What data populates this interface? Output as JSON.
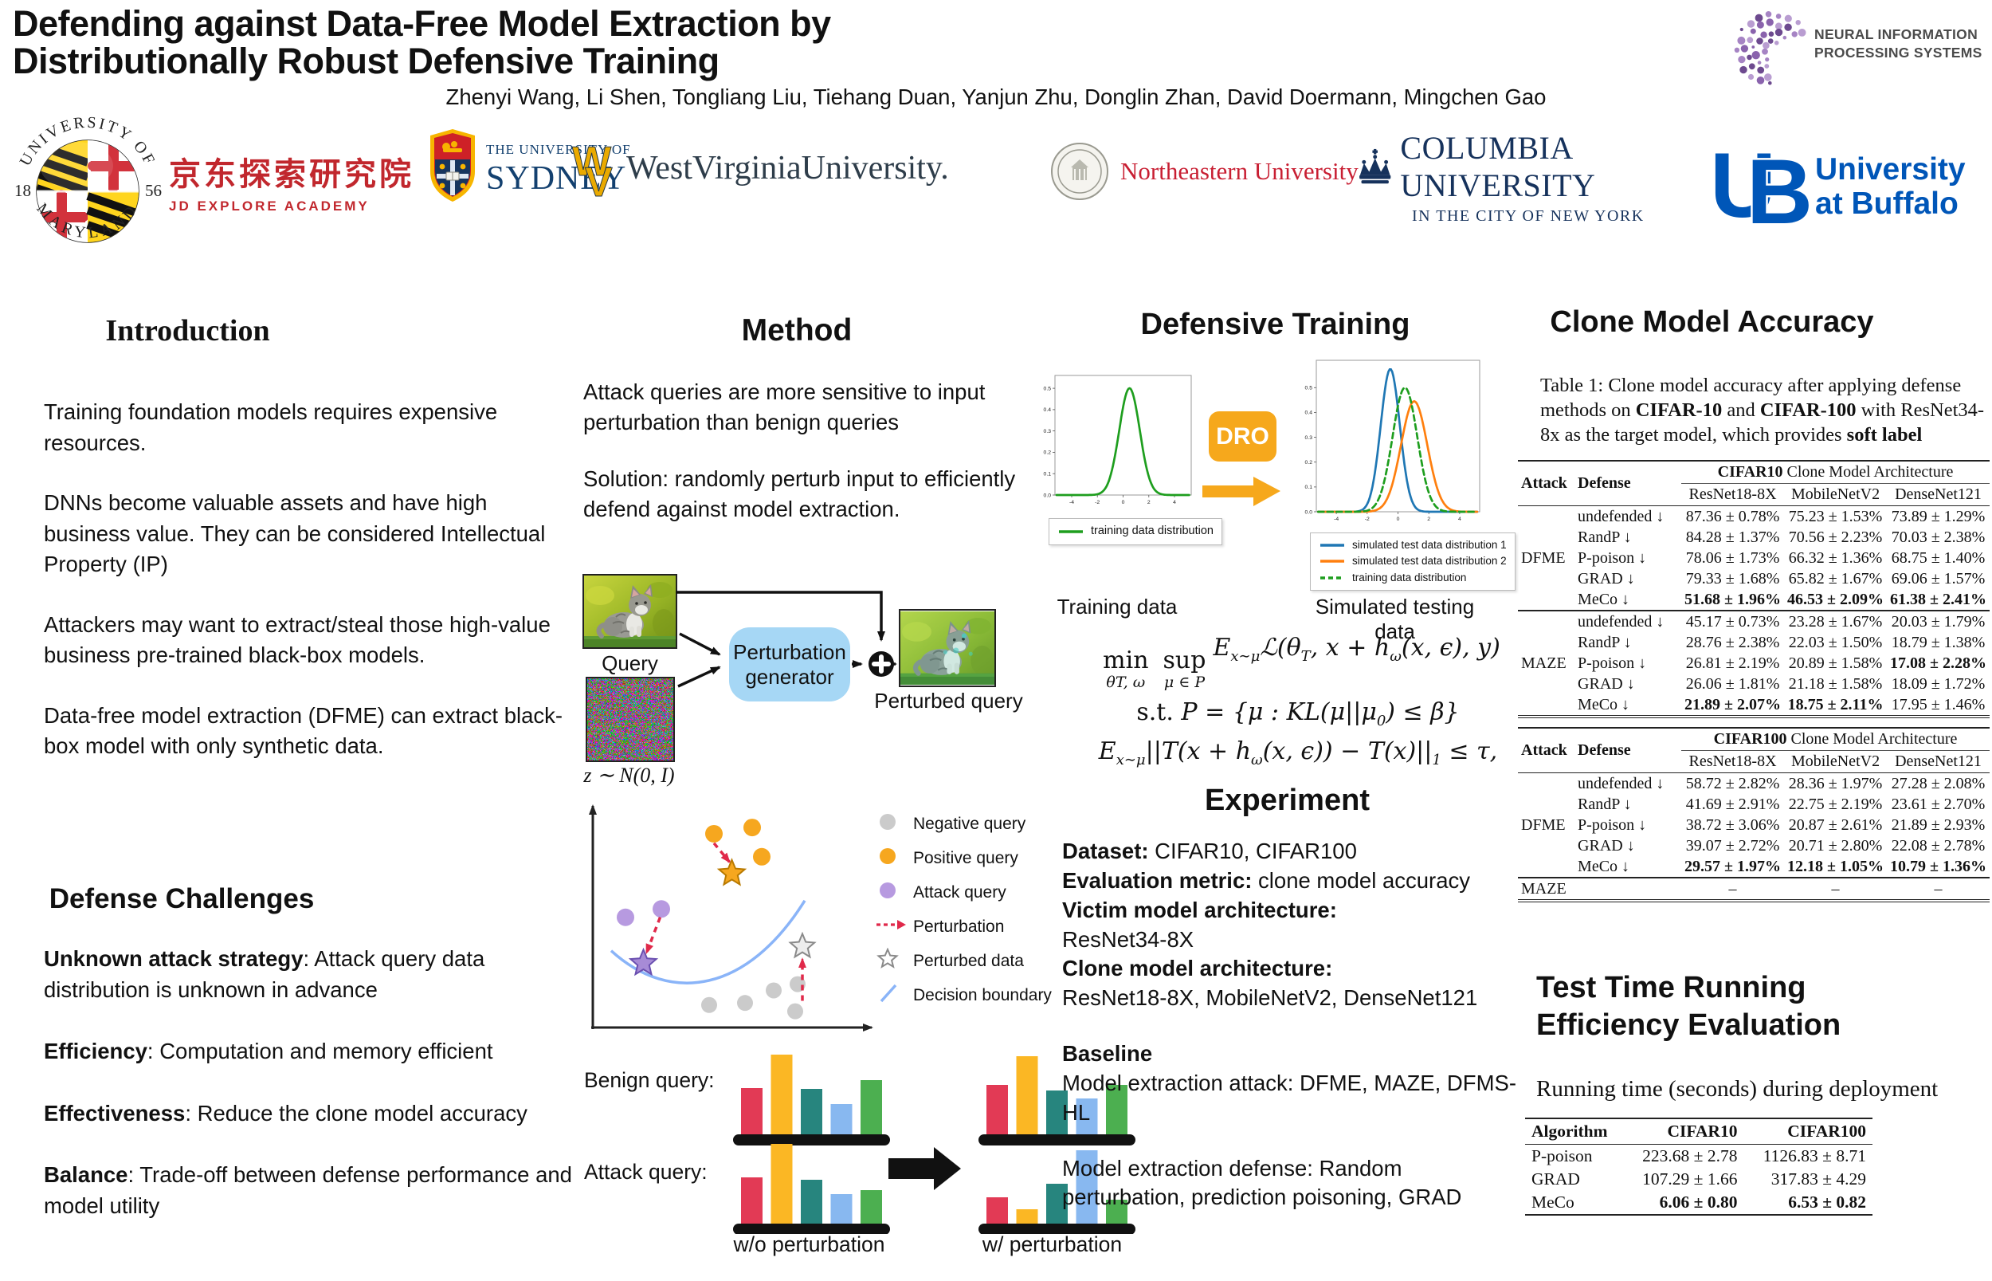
{
  "header": {
    "title": "Defending against Data-Free Model Extraction by Distributionally Robust Defensive Training",
    "authors": "Zhenyi Wang, Li Shen, Tongliang Liu, Tiehang Duan, Yanjun Zhu, Donglin Zhan, David Doermann, Mingchen Gao",
    "neurips": {
      "line1": "NEURAL INFORMATION",
      "line2": "PROCESSING SYSTEMS",
      "dot_color": "#8a63ad"
    },
    "logos": {
      "maryland": {
        "top": "UNIVERSITY OF",
        "bottom": "MARYLAND",
        "left_year": "18",
        "right_year": "56"
      },
      "jd": {
        "cn": "京东探索研究院",
        "en": "JD EXPLORE ACADEMY",
        "color": "#c1272d"
      },
      "sydney": {
        "line1": "THE UNIVERSITY OF",
        "line2": "SYDNEY",
        "color": "#13406f"
      },
      "wvu": {
        "text": "WestVirginiaUniversity.",
        "gold": "#EAAA00"
      },
      "northeastern": {
        "text": "Northeastern University",
        "color": "#c81e32"
      },
      "columbia": {
        "line1": "COLUMBIA UNIVERSITY",
        "line2": "IN THE CITY OF NEW YORK",
        "color": "#16325c"
      },
      "buffalo": {
        "mark": "UB",
        "line1": "University",
        "line2": "at Buffalo",
        "color": "#0056b8"
      }
    }
  },
  "introduction": {
    "title": "Introduction",
    "paragraphs": [
      "Training foundation models requires expensive resources.",
      "DNNs become valuable assets and have high business value. They can be considered Intellectual Property (IP)",
      "Attackers may want to extract/steal those high-value business pre-trained black-box models.",
      "Data-free model extraction (DFME) can extract black-box model with only synthetic data."
    ]
  },
  "challenges": {
    "title": "Defense Challenges",
    "items": [
      {
        "lead": "Unknown attack strategy",
        "rest": ": Attack query data distribution is unknown in advance"
      },
      {
        "lead": "Efficiency",
        "rest": ":  Computation and memory efficient"
      },
      {
        "lead": "Effectiveness",
        "rest": ": Reduce the clone model accuracy"
      },
      {
        "lead": "Balance",
        "rest": ": Trade-off between defense performance and model utility"
      }
    ]
  },
  "method": {
    "title": "Method",
    "paragraphs": [
      "Attack queries are more sensitive to input perturbation than benign queries",
      "Solution: randomly perturb input to efficiently defend against model extraction."
    ],
    "pipeline": {
      "query_label": "Query",
      "noise_label": "z ∼ N(0, I)",
      "generator_label_1": "Perturbation",
      "generator_label_2": "generator",
      "perturbed_label": "Perturbed query",
      "generator_color": "#a6d7f5"
    },
    "scatter": {
      "legend": [
        {
          "icon": "dot",
          "color": "#cbcbcb",
          "label": "Negative query"
        },
        {
          "icon": "dot",
          "color": "#f6a71f",
          "label": "Positive query"
        },
        {
          "icon": "dot",
          "color": "#b79ae0",
          "label": "Attack query"
        },
        {
          "icon": "dashed-arrow",
          "color": "#e0294a",
          "label": "Perturbation"
        },
        {
          "icon": "star",
          "color": "#8a8a8a",
          "label": "Perturbed data"
        },
        {
          "icon": "slash",
          "color": "#8ab4f8",
          "label": "Decision boundary"
        }
      ],
      "negative": [
        [
          0.46,
          0.1
        ],
        [
          0.61,
          0.11
        ],
        [
          0.73,
          0.17
        ],
        [
          0.83,
          0.2
        ],
        [
          0.82,
          0.07
        ]
      ],
      "positive": [
        [
          0.48,
          0.92
        ],
        [
          0.64,
          0.95
        ],
        [
          0.68,
          0.81
        ]
      ],
      "attack": [
        [
          0.11,
          0.52
        ],
        [
          0.26,
          0.56
        ]
      ],
      "stars": {
        "positive": [
          0.555,
          0.73
        ],
        "attack": [
          0.185,
          0.3
        ],
        "negative": [
          0.85,
          0.38
        ]
      },
      "perturb_arrows": [
        [
          0.48,
          0.875,
          0.545,
          0.785
        ],
        [
          0.255,
          0.52,
          0.198,
          0.35
        ],
        [
          0.85,
          0.12,
          0.85,
          0.32
        ]
      ],
      "boundary_color": "#8ab4f8",
      "perturb_color": "#e0294a"
    },
    "bars": {
      "benign_label": "Benign query:",
      "attack_label": "Attack query:",
      "wo_label": "w/o perturbation",
      "w_label": "w/ perturbation",
      "colors": [
        "#e23a55",
        "#fbb724",
        "#27857e",
        "#88b8f0",
        "#4caf50"
      ],
      "benign_wo": [
        0.58,
        1.0,
        0.57,
        0.38,
        0.68
      ],
      "attack_wo": [
        0.58,
        1.0,
        0.55,
        0.37,
        0.42
      ],
      "benign_w": [
        0.62,
        0.98,
        0.55,
        0.45,
        0.62
      ],
      "attack_w": [
        0.33,
        0.18,
        0.5,
        0.92,
        0.3
      ]
    }
  },
  "defensive_training": {
    "title": "Defensive Training",
    "dro_label": "DRO",
    "dro_color": "#F6A81C",
    "left_caption": "Training data",
    "right_caption": "Simulated testing data",
    "left_plot": {
      "xmin": -5.3,
      "xmax": 5.3,
      "ymax": 0.56,
      "yticks": [
        0,
        0.1,
        0.2,
        0.3,
        0.4,
        0.5
      ],
      "xticks": [
        -4,
        -2,
        0,
        2,
        4
      ],
      "curves": [
        {
          "mean": 0.5,
          "sd": 0.8,
          "peak": 0.5,
          "color": "#1e9e1e",
          "dash": false
        }
      ],
      "legend": [
        {
          "label": "training data distribution",
          "color": "#1e9e1e",
          "dash": false
        }
      ]
    },
    "right_plot": {
      "xmin": -5.3,
      "xmax": 5.3,
      "ymax": 0.61,
      "yticks": [
        0,
        0.1,
        0.2,
        0.3,
        0.4,
        0.5
      ],
      "xticks": [
        -4,
        -2,
        0,
        2,
        4
      ],
      "curves": [
        {
          "mean": -0.5,
          "sd": 0.62,
          "peak": 0.575,
          "color": "#1f77b4",
          "dash": false
        },
        {
          "mean": 1.05,
          "sd": 0.85,
          "peak": 0.445,
          "color": "#ff7f0e",
          "dash": false
        },
        {
          "mean": 0.45,
          "sd": 0.8,
          "peak": 0.5,
          "color": "#1e9e1e",
          "dash": true
        }
      ],
      "legend": [
        {
          "label": "simulated test data distribution 1",
          "color": "#1f77b4",
          "dash": false
        },
        {
          "label": "simulated test data distribution 2",
          "color": "#ff7f0e",
          "dash": false
        },
        {
          "label": "training data distribution",
          "color": "#1e9e1e",
          "dash": true
        }
      ]
    },
    "formulas": {
      "f1": [
        {
          "stack": {
            "top": "min",
            "under": "θT, ω"
          }
        },
        {
          "stack": {
            "top": "sup",
            "under": "μ ∈ P"
          }
        },
        {
          "text": "E"
        },
        {
          "sub": "x∼μ"
        },
        {
          "text": "ℒ(θ"
        },
        {
          "sub": "T"
        },
        {
          "text": ", x + h"
        },
        {
          "sub": "ω"
        },
        {
          "text": "(x, ϵ), y)"
        }
      ],
      "f2": [
        {
          "up": "s.t. "
        },
        {
          "text": "P = {μ : KL(μ||μ"
        },
        {
          "sub": "0"
        },
        {
          "text": ") ≤ β}"
        }
      ],
      "f3": [
        {
          "text": "E"
        },
        {
          "sub": "x∼μ"
        },
        {
          "text": "||T(x + h"
        },
        {
          "sub": "ω"
        },
        {
          "text": "(x, ϵ)) − T(x)||"
        },
        {
          "sub": "1"
        },
        {
          "text": " ≤ τ,"
        }
      ]
    }
  },
  "experiment": {
    "title": "Experiment",
    "lines": [
      {
        "lead": "Dataset:",
        "rest": "  CIFAR10, CIFAR100"
      },
      {
        "lead": "Evaluation metric:",
        "rest": " clone model accuracy"
      },
      {
        "lead": "Victim model architecture:",
        "rest": ""
      },
      {
        "lead": "",
        "rest": "ResNet34-8X"
      },
      {
        "lead": "Clone model architecture:",
        "rest": ""
      },
      {
        "lead": "",
        "rest": "ResNet18-8X, MobileNetV2, DenseNet121"
      },
      {
        "spacer": true
      },
      {
        "lead": "Baseline",
        "rest": ""
      },
      {
        "lead": "",
        "rest": "Model extraction attack:  DFME, MAZE, DFMS-HL"
      },
      {
        "spacer": true
      },
      {
        "lead": "",
        "rest": "Model extraction defense: Random perturbation,  prediction poisoning, GRAD"
      }
    ]
  },
  "clone_accuracy": {
    "title": "Clone Model Accuracy",
    "caption": [
      {
        "t": "Table 1: Clone model accuracy after applying defense methods on "
      },
      {
        "t": "CIFAR-10",
        "b": true
      },
      {
        "t": " and "
      },
      {
        "t": "CIFAR-100",
        "b": true
      },
      {
        "t": " with ResNet34-8x as the target model, which provides "
      },
      {
        "t": "soft label",
        "b": true
      }
    ],
    "cifar10": {
      "col_attack": "Attack",
      "col_defense": "Defense",
      "group_bold": "CIFAR10",
      "group_rest": " Clone Model Architecture",
      "cols": [
        "ResNet18-8X",
        "MobileNetV2",
        "DenseNet121"
      ],
      "groups": [
        {
          "attack": "DFME",
          "rows": [
            {
              "defense": "undefended ↓",
              "cells": [
                {
                  "t": "87.36 ± 0.78%"
                },
                {
                  "t": "75.23 ± 1.53%"
                },
                {
                  "t": "73.89 ± 1.29%"
                }
              ]
            },
            {
              "defense": "RandP ↓",
              "cells": [
                {
                  "t": "84.28 ± 1.37%"
                },
                {
                  "t": "70.56 ± 2.23%"
                },
                {
                  "t": "70.03 ± 2.38%"
                }
              ]
            },
            {
              "defense": "P-poison ↓",
              "cells": [
                {
                  "t": "78.06 ± 1.73%"
                },
                {
                  "t": "66.32 ± 1.36%"
                },
                {
                  "t": "68.75 ± 1.40%"
                }
              ]
            },
            {
              "defense": "GRAD ↓",
              "cells": [
                {
                  "t": "79.33 ± 1.68%"
                },
                {
                  "t": "65.82 ± 1.67%"
                },
                {
                  "t": "69.06 ± 1.57%"
                }
              ]
            },
            {
              "defense": "MeCo ↓",
              "cells": [
                {
                  "t": "51.68 ± 1.96%",
                  "b": true
                },
                {
                  "t": "46.53 ± 2.09%",
                  "b": true
                },
                {
                  "t": "61.38 ± 2.41%",
                  "b": true
                }
              ]
            }
          ]
        },
        {
          "attack": "MAZE",
          "rows": [
            {
              "defense": "undefended ↓",
              "cells": [
                {
                  "t": "45.17 ± 0.73%"
                },
                {
                  "t": "23.28 ± 1.67%"
                },
                {
                  "t": "20.03 ± 1.79%"
                }
              ]
            },
            {
              "defense": "RandP ↓",
              "cells": [
                {
                  "t": "28.76 ± 2.38%"
                },
                {
                  "t": "22.03 ± 1.50%"
                },
                {
                  "t": "18.79 ± 1.38%"
                }
              ]
            },
            {
              "defense": "P-poison ↓",
              "cells": [
                {
                  "t": "26.81 ± 2.19%"
                },
                {
                  "t": "20.89 ± 1.58%"
                },
                {
                  "t": "17.08 ± 2.28%",
                  "b": true
                }
              ]
            },
            {
              "defense": "GRAD ↓",
              "cells": [
                {
                  "t": "26.06 ± 1.81%"
                },
                {
                  "t": "21.18 ± 1.58%"
                },
                {
                  "t": "18.09 ± 1.72%"
                }
              ]
            },
            {
              "defense": "MeCo ↓",
              "cells": [
                {
                  "t": "21.89 ± 2.07%",
                  "b": true
                },
                {
                  "t": "18.75 ± 2.11%",
                  "b": true
                },
                {
                  "t": "17.95 ± 1.46%"
                }
              ]
            }
          ]
        }
      ]
    },
    "cifar100": {
      "col_attack": "Attack",
      "col_defense": "Defense",
      "group_bold": "CIFAR100",
      "group_rest": " Clone Model Architecture",
      "cols": [
        "ResNet18-8X",
        "MobileNetV2",
        "DenseNet121"
      ],
      "groups": [
        {
          "attack": "DFME",
          "rows": [
            {
              "defense": "undefended ↓",
              "cells": [
                {
                  "t": "58.72 ± 2.82%"
                },
                {
                  "t": "28.36 ± 1.97%"
                },
                {
                  "t": "27.28 ± 2.08%"
                }
              ]
            },
            {
              "defense": "RandP ↓",
              "cells": [
                {
                  "t": "41.69 ± 2.91%"
                },
                {
                  "t": "22.75 ± 2.19%"
                },
                {
                  "t": "23.61 ± 2.70%"
                }
              ]
            },
            {
              "defense": "P-poison ↓",
              "cells": [
                {
                  "t": "38.72 ± 3.06%"
                },
                {
                  "t": "20.87 ± 2.61%"
                },
                {
                  "t": "21.89 ± 2.93%"
                }
              ]
            },
            {
              "defense": "GRAD ↓",
              "cells": [
                {
                  "t": "39.07 ± 2.72%"
                },
                {
                  "t": "20.71 ± 2.80%"
                },
                {
                  "t": "22.08 ± 2.78%"
                }
              ]
            },
            {
              "defense": "MeCo ↓",
              "cells": [
                {
                  "t": "29.57 ± 1.97%",
                  "b": true
                },
                {
                  "t": "12.18 ± 1.05%",
                  "b": true
                },
                {
                  "t": "10.79 ± 1.36%",
                  "b": true
                }
              ]
            }
          ]
        },
        {
          "attack": "MAZE",
          "rows": [
            {
              "defense": "",
              "cells": [
                {
                  "t": "–"
                },
                {
                  "t": "–"
                },
                {
                  "t": "–"
                }
              ]
            }
          ]
        }
      ]
    }
  },
  "efficiency": {
    "title_line1": "Test Time Running",
    "title_line2": "Efficiency Evaluation",
    "subtitle": "Running time (seconds) during deployment",
    "table": {
      "cols": [
        "Algorithm",
        "CIFAR10",
        "CIFAR100"
      ],
      "rows": [
        {
          "cells": [
            {
              "t": "P-poison"
            },
            {
              "t": "223.68 ± 2.78"
            },
            {
              "t": "1126.83 ± 8.71"
            }
          ]
        },
        {
          "cells": [
            {
              "t": "GRAD"
            },
            {
              "t": "107.29 ± 1.66"
            },
            {
              "t": "317.83 ± 4.29"
            }
          ]
        },
        {
          "cells": [
            {
              "t": "MeCo"
            },
            {
              "t": "6.06 ± 0.80",
              "b": true
            },
            {
              "t": "6.53 ± 0.82",
              "b": true
            }
          ]
        }
      ]
    }
  }
}
